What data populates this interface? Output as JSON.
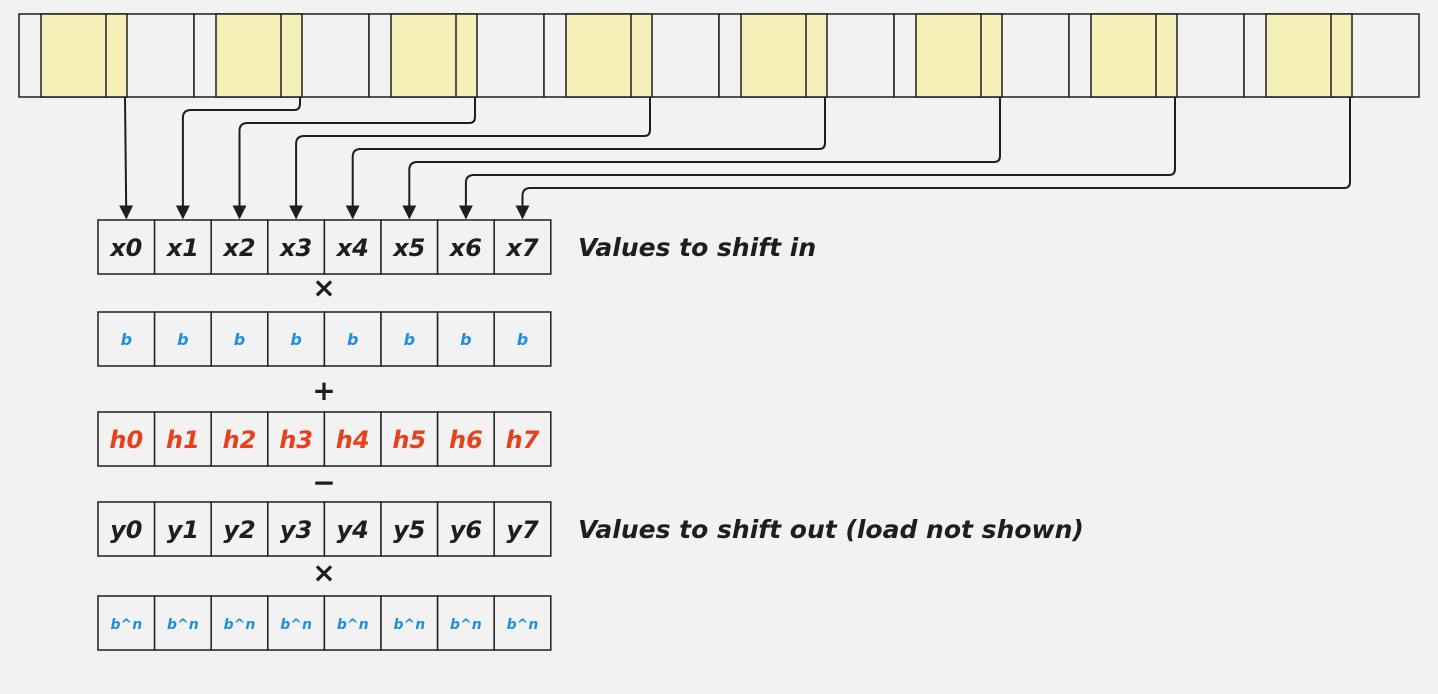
{
  "memory_cells": 8,
  "rows": [
    {
      "id": "x-row",
      "cells": [
        "x0",
        "x1",
        "x2",
        "x3",
        "x4",
        "x5",
        "x6",
        "x7"
      ],
      "color": "#1e1e1e",
      "caption": "Values to shift in"
    },
    {
      "id": "b-row",
      "cells": [
        "b",
        "b",
        "b",
        "b",
        "b",
        "b",
        "b",
        "b"
      ],
      "color": "#1f8fe0",
      "caption": ""
    },
    {
      "id": "h-row",
      "cells": [
        "h0",
        "h1",
        "h2",
        "h3",
        "h4",
        "h5",
        "h6",
        "h7"
      ],
      "color": "#e8401c",
      "caption": ""
    },
    {
      "id": "y-row",
      "cells": [
        "y0",
        "y1",
        "y2",
        "y3",
        "y4",
        "y5",
        "y6",
        "y7"
      ],
      "color": "#1e1e1e",
      "caption": "Values to shift out (load not shown)"
    },
    {
      "id": "bn-row",
      "cells": [
        "b^n",
        "b^n",
        "b^n",
        "b^n",
        "b^n",
        "b^n",
        "b^n",
        "b^n"
      ],
      "color": "#1f8fe0",
      "caption": ""
    }
  ],
  "operators": [
    "×",
    "+",
    "−",
    "×"
  ],
  "colors": {
    "background": "#f2f2f2",
    "stroke": "#1e1e1e",
    "highlight": "#f4f0b7",
    "blue": "#1f8fe0",
    "red": "#e8401c"
  }
}
